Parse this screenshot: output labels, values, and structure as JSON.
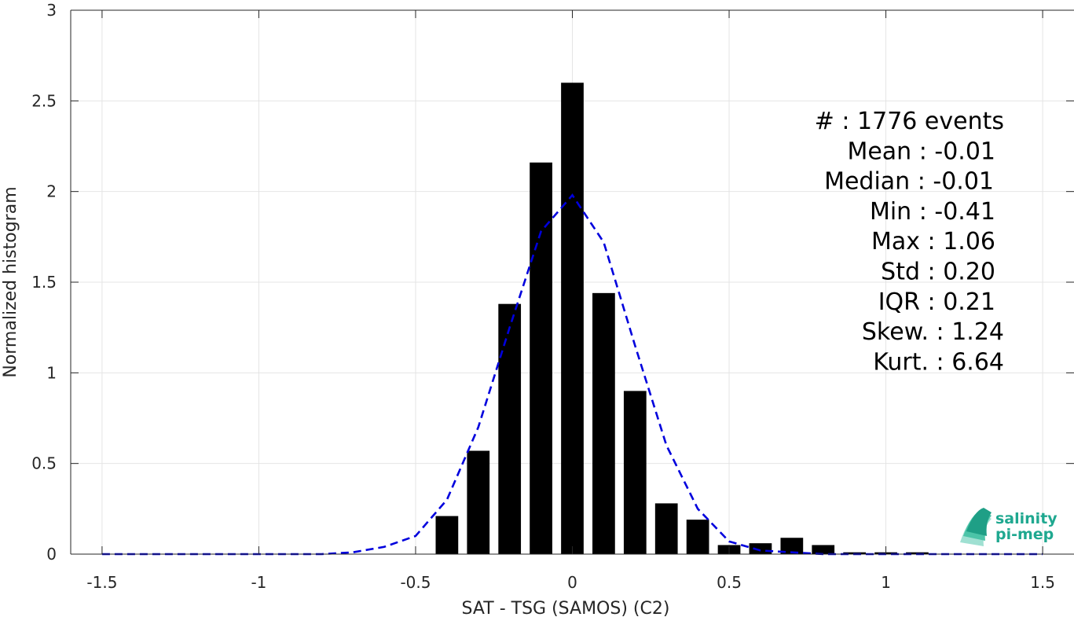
{
  "chart_data": {
    "type": "bar",
    "xlabel": "SAT - TSG (SAMOS) (C2)",
    "ylabel": "Normalized histogram",
    "xlim": [
      -1.6,
      1.6
    ],
    "ylim": [
      0,
      3
    ],
    "x_ticks": [
      -1.5,
      -1,
      -0.5,
      0,
      0.5,
      1,
      1.5
    ],
    "x_tick_labels": [
      "-1.5",
      "-1",
      "-0.5",
      "0",
      "0.5",
      "1",
      "1.5"
    ],
    "y_ticks": [
      0,
      0.5,
      1,
      1.5,
      2,
      2.5,
      3
    ],
    "y_tick_labels": [
      "0",
      "0.5",
      "1",
      "1.5",
      "2",
      "2.5",
      "3"
    ],
    "grid": true,
    "bin_width": 0.1,
    "bars": {
      "x": [
        -0.4,
        -0.3,
        -0.2,
        -0.1,
        0.0,
        0.1,
        0.2,
        0.3,
        0.4,
        0.5,
        0.6,
        0.7,
        0.8,
        0.9,
        1.0,
        1.1
      ],
      "values": [
        0.21,
        0.57,
        1.38,
        2.16,
        2.6,
        1.44,
        0.9,
        0.28,
        0.19,
        0.05,
        0.06,
        0.09,
        0.05,
        0.01,
        0.01,
        0.01
      ],
      "color": "#000000"
    },
    "fit_curve": {
      "style": "dashed",
      "color": "#0000dd",
      "x": [
        -1.5,
        -1.4,
        -1.3,
        -1.2,
        -1.1,
        -1.0,
        -0.9,
        -0.8,
        -0.7,
        -0.6,
        -0.5,
        -0.4,
        -0.3,
        -0.2,
        -0.1,
        0.0,
        0.1,
        0.2,
        0.3,
        0.4,
        0.5,
        0.6,
        0.7,
        0.8,
        0.9,
        1.0,
        1.1,
        1.2,
        1.3,
        1.4,
        1.5
      ],
      "y": [
        0,
        0,
        0,
        0,
        0,
        0,
        0,
        0,
        0.01,
        0.04,
        0.1,
        0.3,
        0.7,
        1.25,
        1.78,
        1.98,
        1.72,
        1.15,
        0.6,
        0.25,
        0.07,
        0.02,
        0.01,
        0,
        0,
        0,
        0,
        0,
        0,
        0,
        0
      ]
    },
    "stats": [
      "#  : 1776 events",
      "Mean : -0.01",
      "Median : -0.01",
      "Min : -0.41",
      "Max : 1.06",
      "Std : 0.20",
      "IQR : 0.21",
      "Skew. : 1.24",
      "Kurt. : 6.64"
    ]
  },
  "logo": {
    "line1": "salinity",
    "line2": "pi-mep",
    "color": "#1fa890"
  }
}
